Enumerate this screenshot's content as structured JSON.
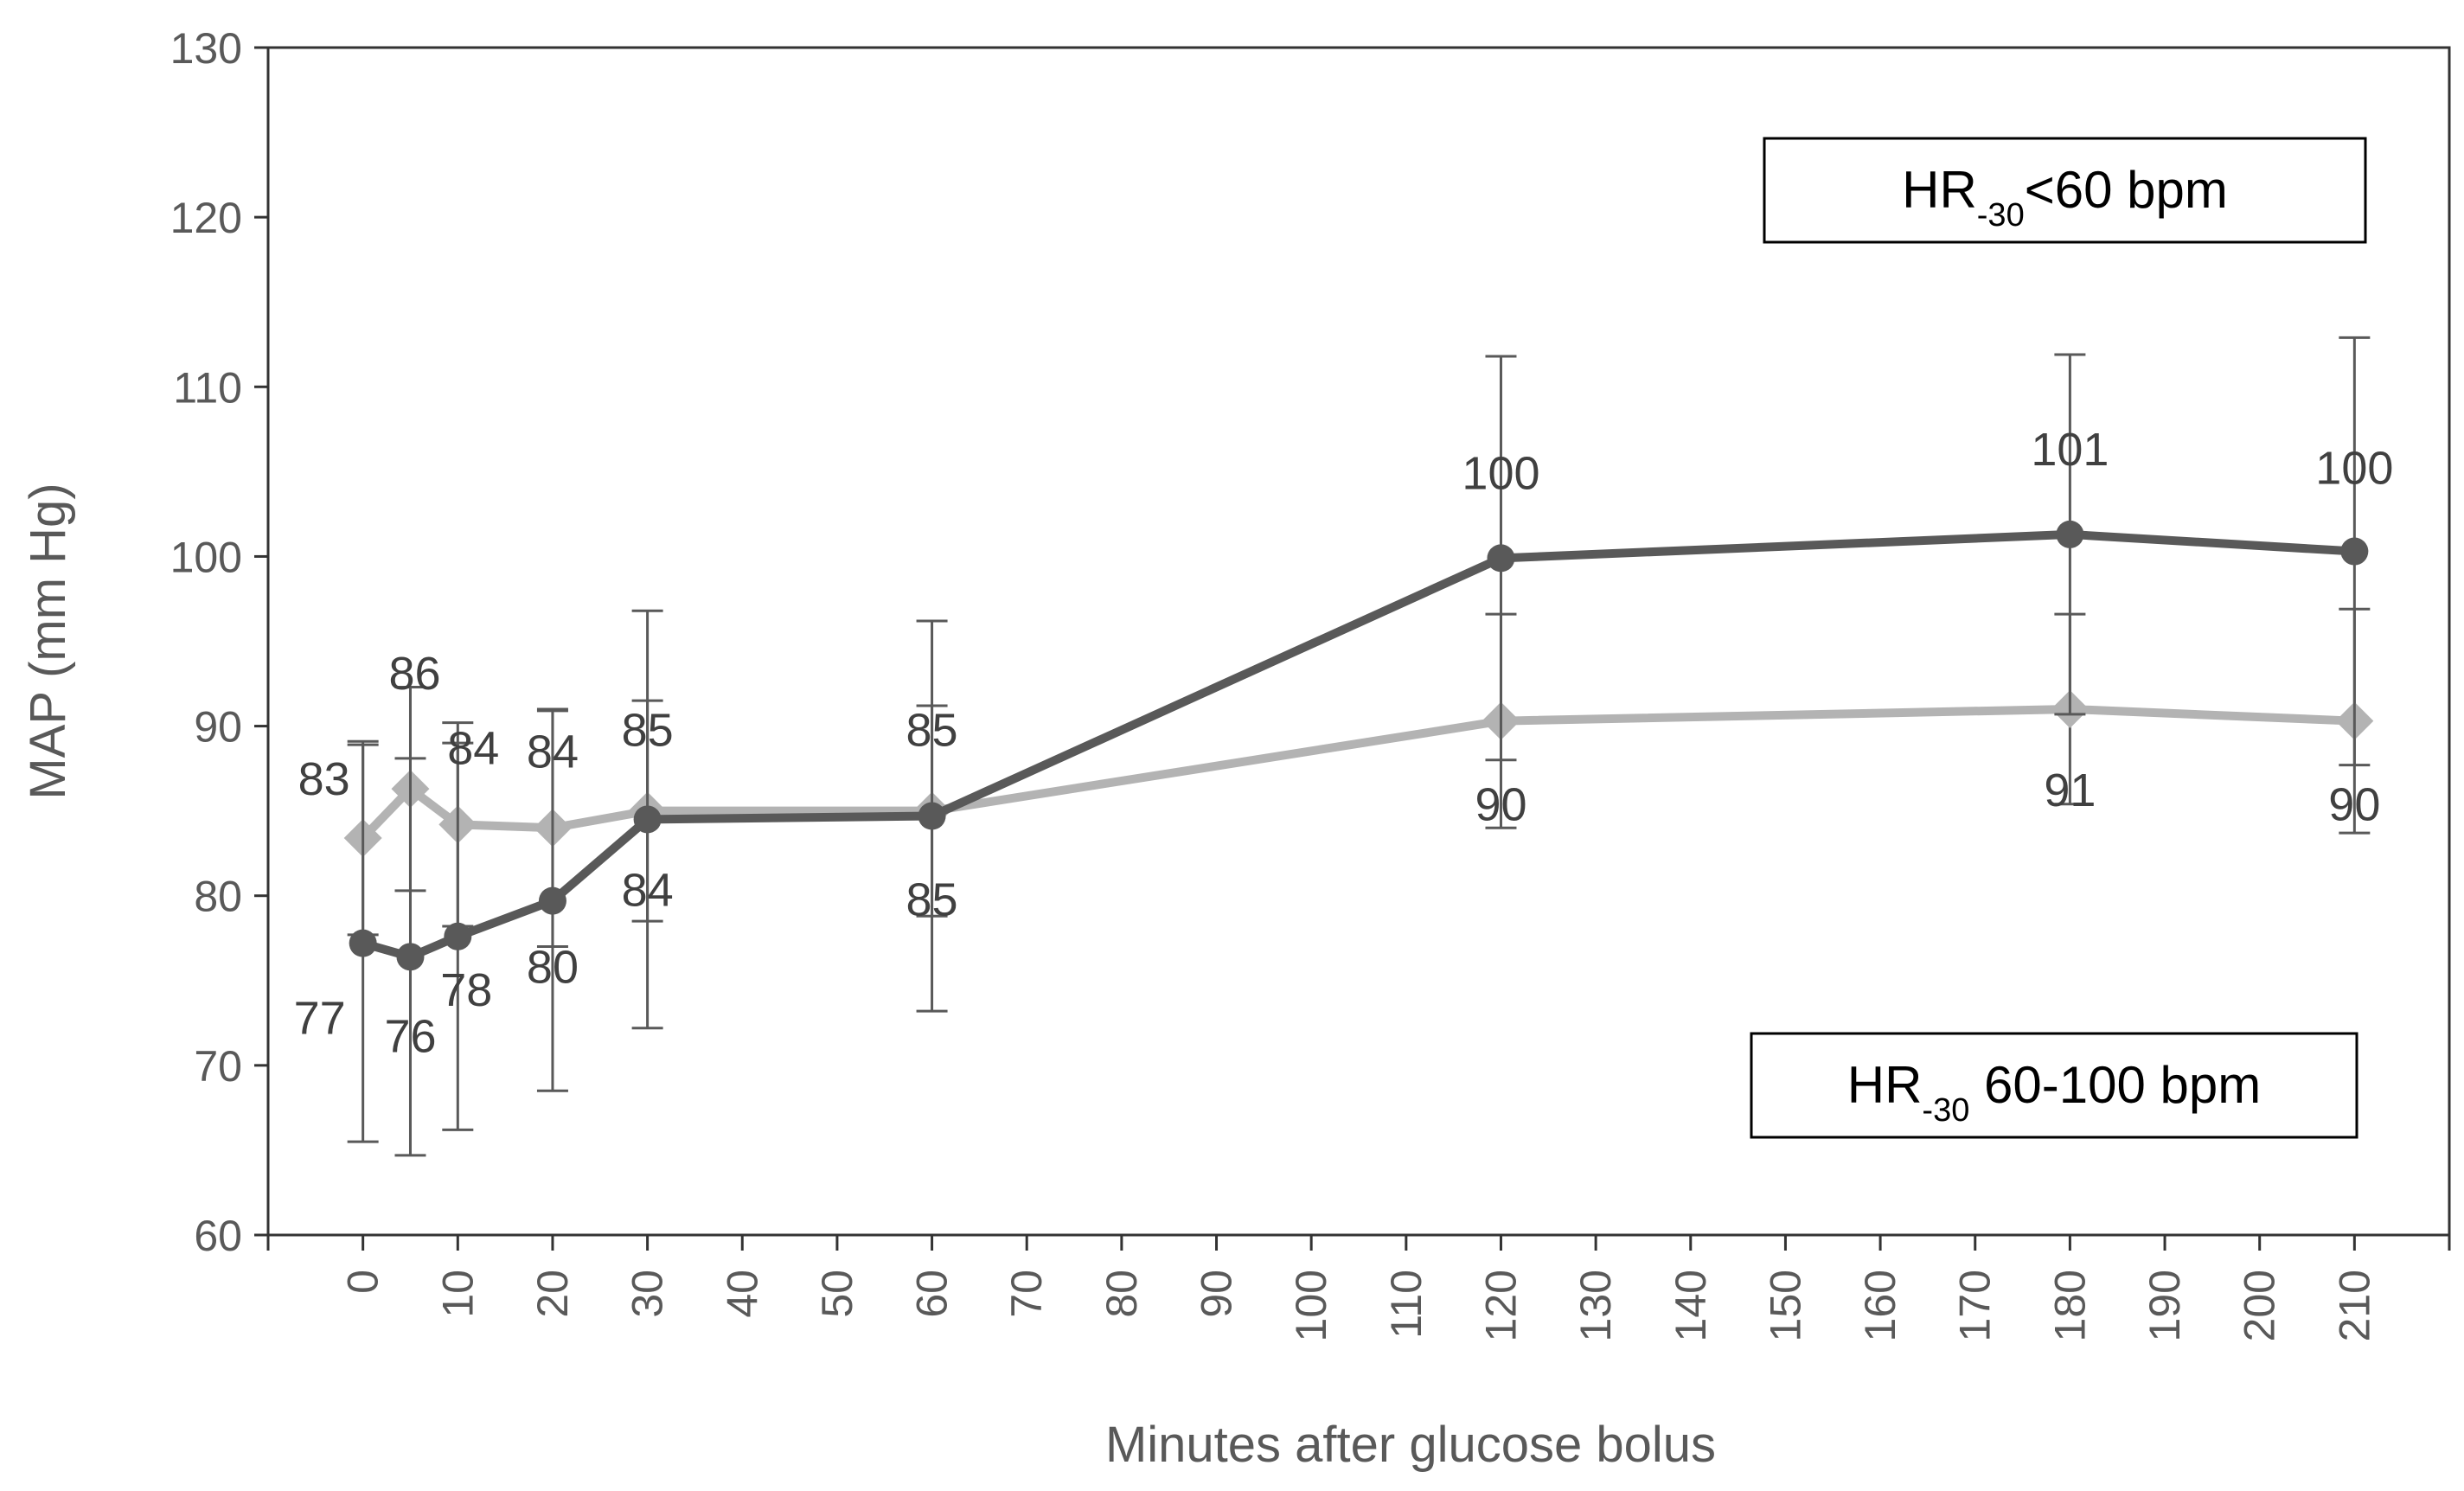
{
  "chart_data": {
    "type": "line",
    "title": "",
    "xlabel": "Minutes after glucose bolus",
    "ylabel": "MAP (mm Hg)",
    "xlim": [
      -10,
      220
    ],
    "ylim": [
      60,
      130
    ],
    "xticks": [
      0,
      10,
      20,
      30,
      40,
      50,
      60,
      70,
      80,
      90,
      100,
      110,
      120,
      130,
      140,
      150,
      160,
      170,
      180,
      190,
      200,
      210
    ],
    "yticks": [
      60,
      70,
      80,
      90,
      100,
      110,
      120,
      130
    ],
    "grid": false,
    "series": [
      {
        "name": "HR-30<60 bpm",
        "marker": "circle",
        "color": "#595959",
        "x": [
          0,
          5,
          10,
          20,
          30,
          60,
          120,
          180,
          210
        ],
        "values": [
          77.2,
          76.4,
          77.6,
          79.7,
          84.5,
          84.7,
          99.9,
          101.3,
          100.3
        ],
        "error": [
          11.7,
          11.7,
          11.4,
          11.2,
          12.3,
          11.5,
          11.9,
          10.6,
          12.6
        ],
        "labels": [
          "77",
          "76",
          "78",
          "80",
          "84",
          "85",
          "100",
          "101",
          "100"
        ]
      },
      {
        "name": "HR-30 60-100 bpm",
        "marker": "diamond",
        "color": "#b3b3b3",
        "x": [
          0,
          5,
          10,
          20,
          30,
          60,
          120,
          180,
          210
        ],
        "values": [
          83.4,
          86.3,
          84.2,
          84.0,
          85.0,
          85.0,
          90.3,
          91.0,
          90.3
        ],
        "error": [
          5.7,
          6.0,
          6.0,
          7.0,
          6.5,
          6.2,
          6.3,
          5.6,
          6.6
        ],
        "labels": [
          "83",
          "86",
          "84",
          "84",
          "85",
          "85",
          "90",
          "91",
          "90"
        ]
      }
    ],
    "legend": [
      {
        "prefix": "HR",
        "subscript": "-30",
        "suffix": "<60 bpm",
        "series": "HR-30<60 bpm"
      },
      {
        "prefix": "HR",
        "subscript": "-30",
        "suffix": " 60-100 bpm",
        "series": "HR-30 60-100 bpm"
      }
    ]
  }
}
